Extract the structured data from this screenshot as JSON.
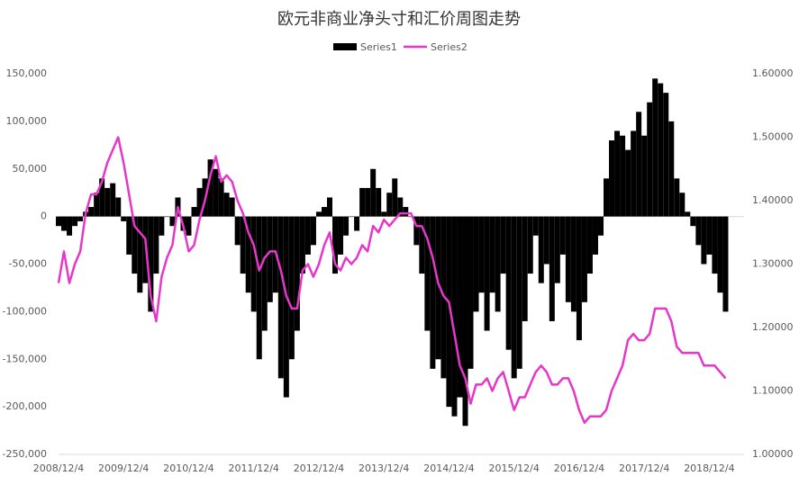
{
  "chart_data": {
    "type": "bar_line",
    "title": "欧元非商业净头寸和汇价周图走势",
    "categories": [
      "2008/12/4",
      null,
      null,
      null,
      null,
      null,
      null,
      null,
      null,
      null,
      null,
      null,
      "2009/12/4",
      null,
      null,
      null,
      null,
      null,
      null,
      null,
      null,
      null,
      null,
      null,
      "2010/12/4",
      null,
      null,
      null,
      null,
      null,
      null,
      null,
      null,
      null,
      null,
      null,
      "2011/12/4",
      null,
      null,
      null,
      null,
      null,
      null,
      null,
      null,
      null,
      null,
      null,
      "2012/12/4",
      null,
      null,
      null,
      null,
      null,
      null,
      null,
      null,
      null,
      null,
      null,
      "2013/12/4",
      null,
      null,
      null,
      null,
      null,
      null,
      null,
      null,
      null,
      null,
      null,
      "2014/12/4",
      null,
      null,
      null,
      null,
      null,
      null,
      null,
      null,
      null,
      null,
      null,
      "2015/12/4",
      null,
      null,
      null,
      null,
      null,
      null,
      null,
      null,
      null,
      null,
      null,
      "2016/12/4",
      null,
      null,
      null,
      null,
      null,
      null,
      null,
      null,
      null,
      null,
      null,
      "2017/12/4",
      null,
      null,
      null,
      null,
      null,
      null,
      null,
      null,
      null,
      null,
      null,
      "2018/12/4",
      null,
      null,
      null
    ],
    "series": [
      {
        "name": "Series1",
        "color": "#000000",
        "kind": "bar",
        "values": [
          -10000,
          -15000,
          -20000,
          -10000,
          -5000,
          5000,
          10000,
          25000,
          40000,
          30000,
          35000,
          20000,
          -5000,
          -40000,
          -60000,
          -80000,
          -70000,
          -100000,
          -60000,
          -20000,
          0,
          -10000,
          20000,
          -15000,
          -20000,
          10000,
          30000,
          40000,
          60000,
          50000,
          40000,
          25000,
          20000,
          -30000,
          -60000,
          -80000,
          -100000,
          -150000,
          -120000,
          -90000,
          -80000,
          -170000,
          -190000,
          -150000,
          -120000,
          -60000,
          -40000,
          -30000,
          5000,
          10000,
          20000,
          -60000,
          -40000,
          -20000,
          0,
          -15000,
          30000,
          30000,
          50000,
          30000,
          5000,
          25000,
          40000,
          20000,
          10000,
          0,
          -30000,
          -60000,
          -120000,
          -160000,
          -150000,
          -170000,
          -200000,
          -210000,
          -190000,
          -220000,
          -160000,
          -100000,
          -80000,
          -120000,
          -80000,
          -100000,
          -60000,
          -140000,
          -170000,
          -160000,
          -110000,
          -60000,
          -20000,
          -70000,
          -50000,
          -110000,
          -70000,
          -40000,
          -90000,
          -100000,
          -130000,
          -90000,
          -60000,
          -40000,
          -20000,
          40000,
          80000,
          90000,
          85000,
          70000,
          90000,
          110000,
          85000,
          120000,
          145000,
          140000,
          130000,
          100000,
          40000,
          25000,
          5000,
          -10000,
          -30000,
          -50000,
          -40000,
          -60000,
          -80000,
          -100000
        ]
      },
      {
        "name": "Series2",
        "color": "#e637c8",
        "kind": "line",
        "axis": "y2",
        "values": [
          1.27,
          1.32,
          1.27,
          1.3,
          1.32,
          1.38,
          1.41,
          1.41,
          1.43,
          1.46,
          1.48,
          1.5,
          1.46,
          1.41,
          1.36,
          1.35,
          1.34,
          1.25,
          1.21,
          1.28,
          1.31,
          1.33,
          1.39,
          1.36,
          1.32,
          1.33,
          1.37,
          1.4,
          1.44,
          1.47,
          1.43,
          1.44,
          1.43,
          1.4,
          1.38,
          1.35,
          1.33,
          1.29,
          1.31,
          1.32,
          1.32,
          1.29,
          1.25,
          1.23,
          1.23,
          1.29,
          1.3,
          1.28,
          1.3,
          1.33,
          1.35,
          1.3,
          1.29,
          1.31,
          1.3,
          1.31,
          1.33,
          1.32,
          1.36,
          1.35,
          1.37,
          1.36,
          1.37,
          1.38,
          1.38,
          1.38,
          1.36,
          1.36,
          1.34,
          1.31,
          1.27,
          1.25,
          1.24,
          1.19,
          1.14,
          1.12,
          1.08,
          1.11,
          1.11,
          1.12,
          1.1,
          1.12,
          1.13,
          1.1,
          1.07,
          1.09,
          1.09,
          1.11,
          1.13,
          1.14,
          1.13,
          1.11,
          1.11,
          1.12,
          1.12,
          1.1,
          1.07,
          1.05,
          1.06,
          1.06,
          1.06,
          1.07,
          1.1,
          1.12,
          1.14,
          1.18,
          1.19,
          1.18,
          1.18,
          1.19,
          1.23,
          1.23,
          1.23,
          1.21,
          1.17,
          1.16,
          1.16,
          1.16,
          1.16,
          1.14,
          1.14,
          1.14,
          1.13,
          1.12
        ]
      }
    ],
    "ylim": [
      -250000,
      150000
    ],
    "yticks": [
      {
        "value": -250000,
        "label": "-250,000"
      },
      {
        "value": -200000,
        "label": "-200,000"
      },
      {
        "value": -150000,
        "label": "-150,000"
      },
      {
        "value": -100000,
        "label": "-100,000"
      },
      {
        "value": -50000,
        "label": "-50,000"
      },
      0,
      {
        "value": 50000,
        "label": "50,000"
      },
      {
        "value": 100000,
        "label": "100,000"
      },
      {
        "value": 150000,
        "label": "150,000"
      }
    ],
    "y2lim": [
      1.0,
      1.6
    ],
    "y2ticks": [
      {
        "value": 1.0,
        "label": "1.00000"
      },
      {
        "value": 1.1,
        "label": "1.10000"
      },
      {
        "value": 1.2,
        "label": "1.20000"
      },
      {
        "value": 1.3,
        "label": "1.30000"
      },
      {
        "value": 1.4,
        "label": "1.40000"
      },
      {
        "value": 1.5,
        "label": "1.50000"
      },
      {
        "value": 1.6,
        "label": "1.60000"
      }
    ]
  }
}
